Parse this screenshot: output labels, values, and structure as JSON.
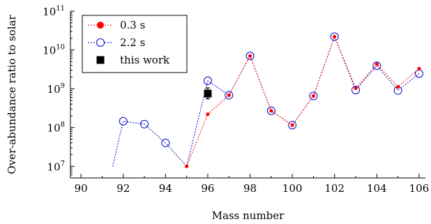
{
  "chart_data": {
    "type": "line",
    "title": "",
    "xlabel": "Mass number",
    "ylabel": "Over-abundance ratio to solar",
    "xlim": [
      89.5,
      106.3
    ],
    "ylim": [
      5000000,
      100000000000
    ],
    "yscale": "log",
    "xticks": [
      90,
      92,
      94,
      96,
      98,
      100,
      102,
      104,
      106
    ],
    "xtick_labels": [
      "90",
      "92",
      "94",
      "96",
      "98",
      "100",
      "102",
      "104",
      "106"
    ],
    "yticks": [
      10000000,
      100000000,
      1000000000,
      10000000000,
      100000000000
    ],
    "ytick_labels": [
      {
        "base": "10",
        "exp": "7"
      },
      {
        "base": "10",
        "exp": "8"
      },
      {
        "base": "10",
        "exp": "9"
      },
      {
        "base": "10",
        "exp": "10"
      },
      {
        "base": "10",
        "exp": "11"
      }
    ],
    "grid": false,
    "legend_position": "top-left",
    "series": [
      {
        "name": "0.3 s",
        "color": "#ff0000",
        "marker": "filled-circle",
        "line": "dotted",
        "x": [
          95,
          96,
          97,
          98,
          99,
          100,
          101,
          102,
          103,
          104,
          105,
          106
        ],
        "y": [
          10000000,
          220000000,
          680000000,
          7000000000,
          270000000,
          115000000,
          650000000,
          22000000000,
          1030000000,
          4300000000,
          1120000000,
          3300000000
        ]
      },
      {
        "name": "2.2 s",
        "color": "#0000cc",
        "marker": "open-circle",
        "line": "dotted",
        "x": [
          91.5,
          92,
          93,
          94,
          95,
          96,
          97,
          98,
          99,
          100,
          101,
          102,
          103,
          104,
          105,
          106
        ],
        "y": [
          10000000,
          145000000,
          122000000,
          40000000,
          10000000,
          1600000000,
          680000000,
          7000000000,
          270000000,
          115000000,
          650000000,
          22000000000,
          920000000,
          3900000000,
          900000000,
          2450000000
        ]
      },
      {
        "name": "this work",
        "color": "#000000",
        "marker": "filled-square",
        "line": "none",
        "x": [
          96
        ],
        "y": [
          750000000
        ],
        "yerr_low": [
          550000000
        ],
        "yerr_high": [
          1050000000
        ]
      }
    ]
  }
}
